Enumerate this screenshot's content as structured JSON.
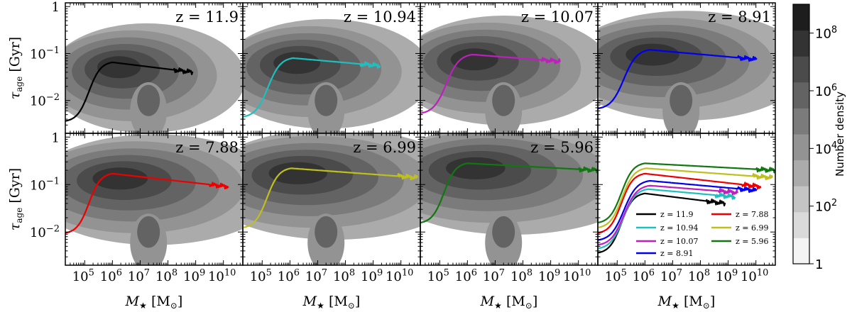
{
  "chart_data": {
    "type": "heatmap",
    "xlabel": "M★ [M⊙]",
    "ylabel": "τage [Gyr]",
    "x_scale": "log",
    "y_scale": "log",
    "xlim": [
      20000,
      50000000000
    ],
    "ylim": [
      0.002,
      1.2
    ],
    "x_ticks": [
      {
        "value": 100000,
        "base": "10",
        "exp": "5"
      },
      {
        "value": 1000000,
        "base": "10",
        "exp": "6"
      },
      {
        "value": 10000000,
        "base": "10",
        "exp": "7"
      },
      {
        "value": 100000000,
        "base": "10",
        "exp": "8"
      },
      {
        "value": 1000000000,
        "base": "10",
        "exp": "9"
      },
      {
        "value": 10000000000,
        "base": "10",
        "exp": "10"
      }
    ],
    "y_ticks": [
      {
        "value": 1,
        "base": "1",
        "exp": ""
      },
      {
        "value": 0.1,
        "base": "10",
        "exp": "−1"
      },
      {
        "value": 0.01,
        "base": "10",
        "exp": "−2"
      }
    ],
    "colorbar": {
      "label": "Number density",
      "ticks": [
        {
          "value": 1,
          "base": "1",
          "exp": ""
        },
        {
          "value": 100,
          "base": "10",
          "exp": "2"
        },
        {
          "value": 10000,
          "base": "10",
          "exp": "4"
        },
        {
          "value": 1000000,
          "base": "10",
          "exp": "6"
        },
        {
          "value": 100000000,
          "base": "10",
          "exp": "8"
        }
      ],
      "levels": [
        "#f4f4f4",
        "#dadada",
        "#c4c4c4",
        "#ababab",
        "#939393",
        "#7b7b7b",
        "#636363",
        "#4b4b4b",
        "#333333",
        "#1d1d1d"
      ]
    },
    "panels": [
      {
        "label": "z = 11.9",
        "z": 11.9,
        "color": "#000000",
        "peak": 0.065,
        "peak_m": 1000000,
        "end_m": 800000000,
        "end_y": 0.04
      },
      {
        "label": "z = 10.94",
        "z": 10.94,
        "color": "#1fbfbf",
        "peak": 0.08,
        "peak_m": 1300000,
        "end_m": 1800000000,
        "end_y": 0.055
      },
      {
        "label": "z = 10.07",
        "z": 10.07,
        "color": "#bf1fbf",
        "peak": 0.095,
        "peak_m": 1500000,
        "end_m": 2200000000,
        "end_y": 0.068
      },
      {
        "label": "z = 8.91",
        "z": 8.91,
        "color": "#0000ee",
        "peak": 0.12,
        "peak_m": 1500000,
        "end_m": 11000000000,
        "end_y": 0.075
      },
      {
        "label": "z = 7.88",
        "z": 7.88,
        "color": "#ee0000",
        "peak": 0.17,
        "peak_m": 1000000,
        "end_m": 16000000000,
        "end_y": 0.09
      },
      {
        "label": "z = 6.99",
        "z": 6.99,
        "color": "#bfbf1f",
        "peak": 0.22,
        "peak_m": 1100000,
        "end_m": 40000000000,
        "end_y": 0.14
      },
      {
        "label": "z = 5.96",
        "z": 5.96,
        "color": "#117711",
        "peak": 0.28,
        "peak_m": 1000000,
        "end_m": 50000000000,
        "end_y": 0.2
      }
    ],
    "legend": {
      "placement": "lower-right",
      "entries": [
        {
          "label": "z = 11.9",
          "color": "#000000"
        },
        {
          "label": "z = 10.94",
          "color": "#1fbfbf"
        },
        {
          "label": "z = 10.07",
          "color": "#bf1fbf"
        },
        {
          "label": "z = 8.91",
          "color": "#0000ee"
        },
        {
          "label": "z = 7.88",
          "color": "#ee0000"
        },
        {
          "label": "z = 6.99",
          "color": "#bfbf1f"
        },
        {
          "label": "z = 5.96",
          "color": "#117711"
        }
      ]
    }
  }
}
